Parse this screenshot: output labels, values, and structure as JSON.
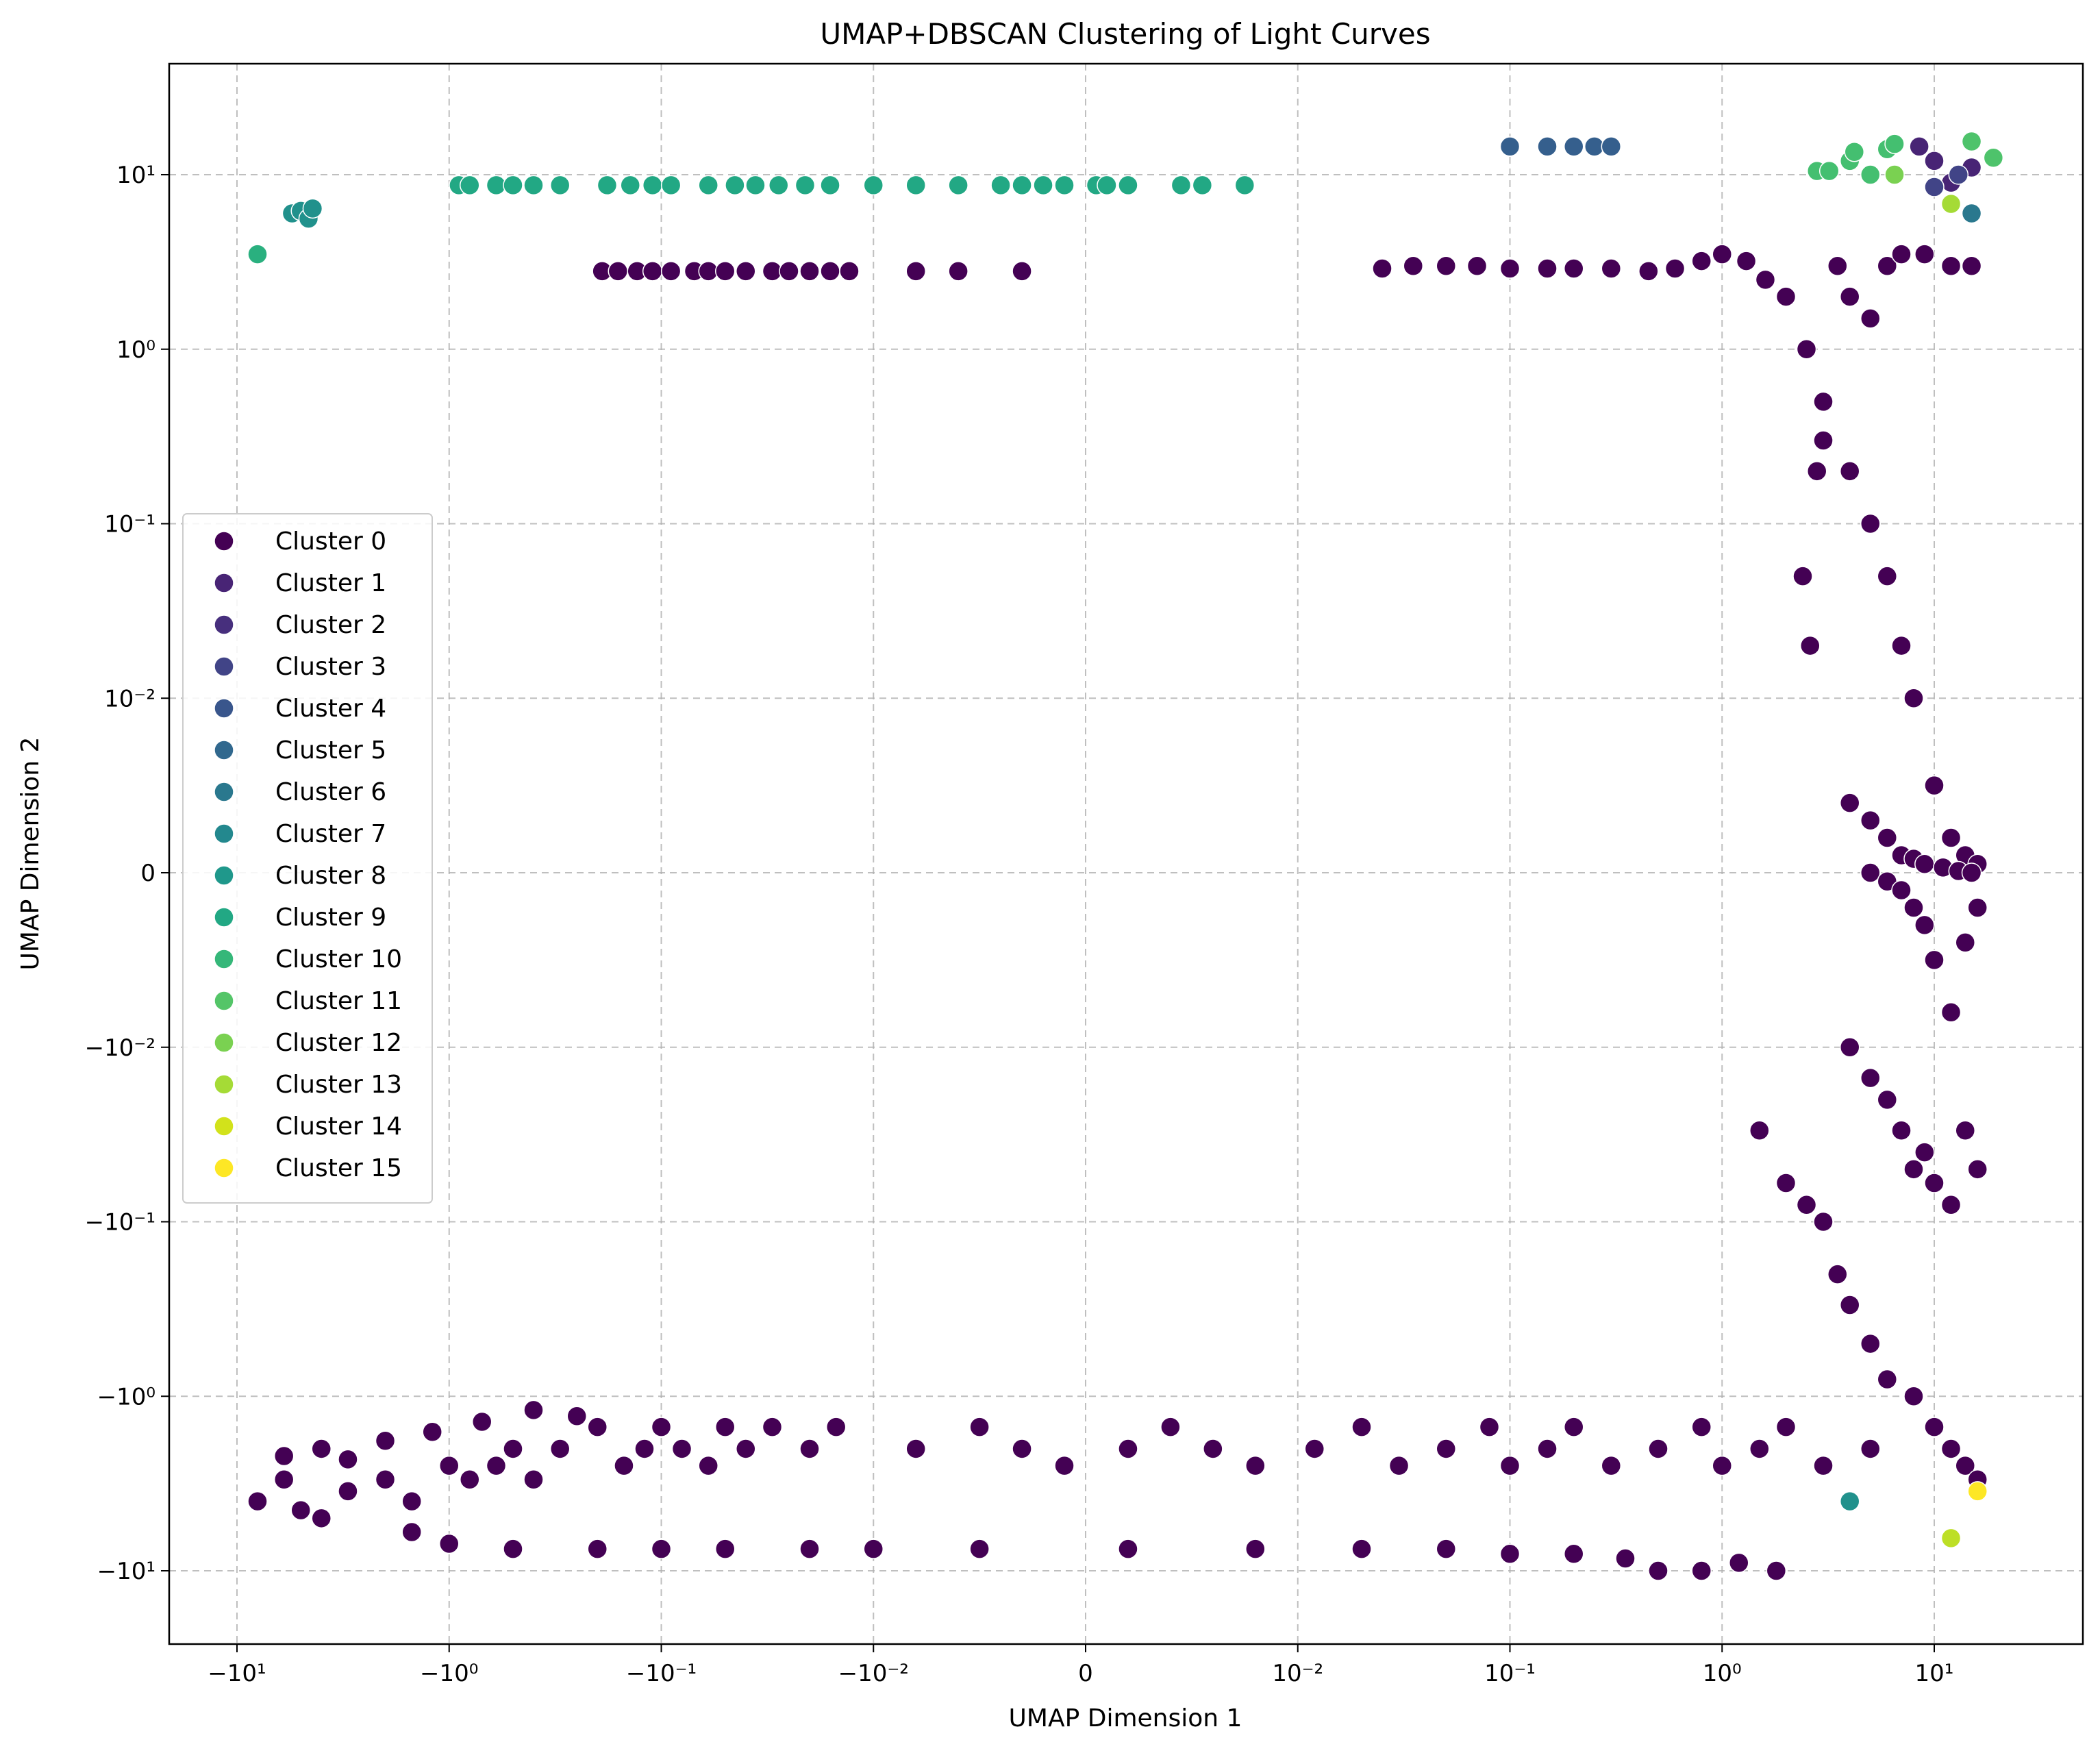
{
  "chart_data": {
    "type": "scatter",
    "title": "UMAP+DBSCAN Clustering of Light Curves",
    "xlabel": "UMAP Dimension 1",
    "ylabel": "UMAP Dimension 2",
    "xscale": "symlog",
    "yscale": "symlog",
    "xlim": [
      -20,
      40
    ],
    "ylim": [
      -20,
      40
    ],
    "grid": true,
    "legend_position": "center-left",
    "x_ticks": [
      {
        "value": -10,
        "label": "−10¹"
      },
      {
        "value": -1,
        "label": "−10⁰"
      },
      {
        "value": -0.1,
        "label": "−10⁻¹"
      },
      {
        "value": -0.01,
        "label": "−10⁻²"
      },
      {
        "value": 0,
        "label": "0"
      },
      {
        "value": 0.01,
        "label": "10⁻²"
      },
      {
        "value": 0.1,
        "label": "10⁻¹"
      },
      {
        "value": 1,
        "label": "10⁰"
      },
      {
        "value": 10,
        "label": "10¹"
      }
    ],
    "y_ticks": [
      {
        "value": 10,
        "label": "10¹"
      },
      {
        "value": 1,
        "label": "10⁰"
      },
      {
        "value": 0.1,
        "label": "10⁻¹"
      },
      {
        "value": 0.01,
        "label": "10⁻²"
      },
      {
        "value": 0,
        "label": "0"
      },
      {
        "value": -0.01,
        "label": "−10⁻²"
      },
      {
        "value": -0.1,
        "label": "−10⁻¹"
      },
      {
        "value": -1,
        "label": "−10⁰"
      },
      {
        "value": -10,
        "label": "−10¹"
      }
    ],
    "series": [
      {
        "name": "Cluster 0",
        "color": "#440154",
        "points": [
          [
            -0.19,
            2.8
          ],
          [
            -0.16,
            2.8
          ],
          [
            -0.13,
            2.8
          ],
          [
            -0.11,
            2.8
          ],
          [
            -0.09,
            2.8
          ],
          [
            -0.07,
            2.8
          ],
          [
            -0.06,
            2.8
          ],
          [
            -0.05,
            2.8
          ],
          [
            -0.04,
            2.8
          ],
          [
            -0.03,
            2.8
          ],
          [
            -0.025,
            2.8
          ],
          [
            -0.02,
            2.8
          ],
          [
            -0.016,
            2.8
          ],
          [
            -0.013,
            2.8
          ],
          [
            -0.008,
            2.8
          ],
          [
            -0.006,
            2.8
          ],
          [
            -0.003,
            2.8
          ],
          [
            0.025,
            2.9
          ],
          [
            0.035,
            3
          ],
          [
            0.05,
            3
          ],
          [
            0.07,
            3
          ],
          [
            0.1,
            2.9
          ],
          [
            0.15,
            2.9
          ],
          [
            0.2,
            2.9
          ],
          [
            0.3,
            2.9
          ],
          [
            0.45,
            2.8
          ],
          [
            0.6,
            2.9
          ],
          [
            0.8,
            3.2
          ],
          [
            1.0,
            3.5
          ],
          [
            1.3,
            3.2
          ],
          [
            1.6,
            2.5
          ],
          [
            2.0,
            2.0
          ],
          [
            2.5,
            1.0
          ],
          [
            3.0,
            0.5
          ],
          [
            2.8,
            0.2
          ],
          [
            2.4,
            0.05
          ],
          [
            2.6,
            0.02
          ],
          [
            3.5,
            3.0
          ],
          [
            4,
            2
          ],
          [
            5,
            1.5
          ],
          [
            6,
            3
          ],
          [
            7,
            3.5
          ],
          [
            9,
            3.5
          ],
          [
            12,
            3
          ],
          [
            15,
            3
          ],
          [
            3,
            0.3
          ],
          [
            4,
            0.2
          ],
          [
            5,
            0.1
          ],
          [
            6,
            0.05
          ],
          [
            7,
            0.02
          ],
          [
            8,
            0.01
          ],
          [
            10,
            0.005
          ],
          [
            12,
            0.002
          ],
          [
            14,
            0.001
          ],
          [
            16,
            0.0005
          ],
          [
            4,
            0.004
          ],
          [
            5,
            0.003
          ],
          [
            6,
            0.002
          ],
          [
            7,
            0.001
          ],
          [
            8,
            0.0008
          ],
          [
            9,
            0.0005
          ],
          [
            11,
            0.0003
          ],
          [
            13,
            0.0001
          ],
          [
            15,
            0
          ],
          [
            5,
            0
          ],
          [
            6,
            -0.0005
          ],
          [
            7,
            -0.001
          ],
          [
            8,
            -0.002
          ],
          [
            9,
            -0.003
          ],
          [
            10,
            -0.005
          ],
          [
            12,
            -0.008
          ],
          [
            14,
            -0.004
          ],
          [
            16,
            -0.002
          ],
          [
            4,
            -0.01
          ],
          [
            5,
            -0.015
          ],
          [
            6,
            -0.02
          ],
          [
            7,
            -0.03
          ],
          [
            8,
            -0.05
          ],
          [
            9,
            -0.04
          ],
          [
            10,
            -0.06
          ],
          [
            12,
            -0.08
          ],
          [
            14,
            -0.03
          ],
          [
            16,
            -0.05
          ],
          [
            1.5,
            -0.03
          ],
          [
            2,
            -0.06
          ],
          [
            2.5,
            -0.08
          ],
          [
            3,
            -0.1
          ],
          [
            3.5,
            -0.2
          ],
          [
            4,
            -0.3
          ],
          [
            5,
            -0.5
          ],
          [
            6,
            -0.8
          ],
          [
            8,
            -1
          ],
          [
            10,
            -1.5
          ],
          [
            12,
            -2
          ],
          [
            14,
            -2.5
          ],
          [
            16,
            -3
          ],
          [
            -8,
            -4
          ],
          [
            -6,
            -3
          ],
          [
            -5,
            -4.5
          ],
          [
            -4,
            -5
          ],
          [
            -3,
            -3.5
          ],
          [
            -2,
            -3
          ],
          [
            -1.5,
            -4
          ],
          [
            -1,
            -2.5
          ],
          [
            -0.8,
            -3
          ],
          [
            -0.6,
            -2.5
          ],
          [
            -0.5,
            -2
          ],
          [
            -0.4,
            -3
          ],
          [
            -0.3,
            -2
          ],
          [
            -0.2,
            -1.5
          ],
          [
            -0.15,
            -2.5
          ],
          [
            -0.12,
            -2
          ],
          [
            -0.1,
            -1.5
          ],
          [
            -0.08,
            -2
          ],
          [
            -0.06,
            -2.5
          ],
          [
            -0.05,
            -1.5
          ],
          [
            -0.04,
            -2
          ],
          [
            -0.03,
            -1.5
          ],
          [
            -0.02,
            -2
          ],
          [
            -0.015,
            -1.5
          ],
          [
            -0.008,
            -2
          ],
          [
            -0.005,
            -1.5
          ],
          [
            -0.003,
            -2
          ],
          [
            -0.001,
            -2.5
          ],
          [
            0.002,
            -2
          ],
          [
            0.004,
            -1.5
          ],
          [
            0.006,
            -2
          ],
          [
            0.008,
            -2.5
          ],
          [
            0.012,
            -2
          ],
          [
            0.02,
            -1.5
          ],
          [
            0.03,
            -2.5
          ],
          [
            0.05,
            -2
          ],
          [
            0.08,
            -1.5
          ],
          [
            0.1,
            -2.5
          ],
          [
            0.15,
            -2
          ],
          [
            0.2,
            -1.5
          ],
          [
            0.3,
            -2.5
          ],
          [
            0.5,
            -2
          ],
          [
            0.8,
            -1.5
          ],
          [
            1.0,
            -2.5
          ],
          [
            1.5,
            -2
          ],
          [
            2,
            -1.5
          ],
          [
            3,
            -2.5
          ],
          [
            5,
            -2
          ],
          [
            -1.5,
            -6
          ],
          [
            -1,
            -7
          ],
          [
            -0.5,
            -7.5
          ],
          [
            -0.2,
            -7.5
          ],
          [
            -0.1,
            -7.5
          ],
          [
            -0.05,
            -7.5
          ],
          [
            -0.02,
            -7.5
          ],
          [
            -0.01,
            -7.5
          ],
          [
            -0.005,
            -7.5
          ],
          [
            0.002,
            -7.5
          ],
          [
            0.008,
            -7.5
          ],
          [
            0.02,
            -7.5
          ],
          [
            0.05,
            -7.5
          ],
          [
            0.1,
            -8
          ],
          [
            0.2,
            -8
          ],
          [
            0.35,
            -8.5
          ],
          [
            0.5,
            -10
          ],
          [
            0.8,
            -10
          ],
          [
            1.2,
            -9
          ],
          [
            1.8,
            -10
          ],
          [
            -6,
            -2.2
          ],
          [
            -4,
            -2
          ],
          [
            -3,
            -2.3
          ],
          [
            -2,
            -1.8
          ],
          [
            -1.2,
            -1.6
          ],
          [
            -0.7,
            -1.4
          ],
          [
            -0.4,
            -1.2
          ],
          [
            -0.25,
            -1.3
          ]
        ]
      },
      {
        "name": "Cluster 1",
        "color": "#482475",
        "points": [
          [
            8.5,
            14.5
          ],
          [
            10,
            12
          ],
          [
            12,
            9
          ],
          [
            15,
            11
          ]
        ]
      },
      {
        "name": "Cluster 2",
        "color": "#414487",
        "points": [
          [
            10,
            8.5
          ],
          [
            13,
            10
          ]
        ]
      },
      {
        "name": "Cluster 3",
        "color": "#355f8d",
        "points": [
          [
            0.1,
            14.5
          ],
          [
            0.15,
            14.5
          ],
          [
            0.2,
            14.5
          ],
          [
            0.25,
            14.5
          ],
          [
            0.3,
            14.5
          ]
        ]
      },
      {
        "name": "Cluster 4",
        "color": "#2a788e",
        "points": [
          [
            15,
            6
          ]
        ]
      },
      {
        "name": "Cluster 5",
        "color": "#21918c",
        "points": [
          [
            -5.5,
            6
          ],
          [
            -5,
            6.2
          ],
          [
            -4.6,
            5.6
          ],
          [
            -4.4,
            6.4
          ]
        ]
      },
      {
        "name": "Cluster 6",
        "color": "#21918c",
        "points": [
          [
            4,
            -4
          ]
        ]
      },
      {
        "name": "Cluster 7",
        "color": "#22a884",
        "points": [
          [
            -0.9,
            8.7
          ],
          [
            -0.8,
            8.7
          ],
          [
            -0.6,
            8.7
          ],
          [
            -0.5,
            8.7
          ],
          [
            -0.4,
            8.7
          ],
          [
            -0.3,
            8.7
          ],
          [
            -0.18,
            8.7
          ],
          [
            -0.14,
            8.7
          ],
          [
            -0.11,
            8.7
          ],
          [
            -0.09,
            8.7
          ],
          [
            -0.06,
            8.7
          ],
          [
            -0.045,
            8.7
          ],
          [
            -0.036,
            8.7
          ],
          [
            -0.028,
            8.7
          ],
          [
            -0.021,
            8.7
          ],
          [
            -0.016,
            8.7
          ],
          [
            -0.01,
            8.7
          ],
          [
            -0.008,
            8.7
          ],
          [
            -0.006,
            8.7
          ],
          [
            -0.004,
            8.7
          ],
          [
            -0.003,
            8.7
          ],
          [
            -0.002,
            8.7
          ],
          [
            -0.001,
            8.7
          ],
          [
            0.0005,
            8.7
          ],
          [
            0.001,
            8.7
          ],
          [
            0.002,
            8.7
          ],
          [
            0.0045,
            8.7
          ],
          [
            0.0055,
            8.7
          ],
          [
            0.0075,
            8.7
          ]
        ]
      },
      {
        "name": "Cluster 8",
        "color": "#2ab07f",
        "points": [
          [
            -8,
            3.5
          ]
        ]
      },
      {
        "name": "Cluster 9",
        "color": "#44bf70",
        "points": [
          [
            2.8,
            10.5
          ],
          [
            3.2,
            10.5
          ],
          [
            4,
            12
          ],
          [
            4.2,
            13.5
          ],
          [
            5,
            10
          ],
          [
            6,
            14
          ],
          [
            6.5,
            15
          ]
        ]
      },
      {
        "name": "Cluster 10",
        "color": "#4ec36b",
        "points": [
          [
            15,
            15.5
          ],
          [
            19,
            12.5
          ]
        ]
      },
      {
        "name": "Cluster 11",
        "color": "#7ad151",
        "points": [
          [
            6.5,
            10
          ]
        ]
      },
      {
        "name": "Cluster 12",
        "color": "#a5db36",
        "points": [
          [
            12,
            6.8
          ]
        ]
      },
      {
        "name": "Cluster 13",
        "color": "#bddf26",
        "points": [
          [
            12,
            -6.5
          ]
        ]
      },
      {
        "name": "Cluster 14",
        "color": "#d2e21b",
        "points": []
      },
      {
        "name": "Cluster 15",
        "color": "#fde725",
        "points": [
          [
            16,
            -3.5
          ]
        ]
      }
    ],
    "legend_colors": [
      "#440154",
      "#482475",
      "#472f7d",
      "#414487",
      "#39568c",
      "#31688e",
      "#2a788e",
      "#23888e",
      "#1f988b",
      "#22a884",
      "#35b779",
      "#54c568",
      "#7ad151",
      "#a5db36",
      "#d2e21b",
      "#fde725"
    ]
  }
}
